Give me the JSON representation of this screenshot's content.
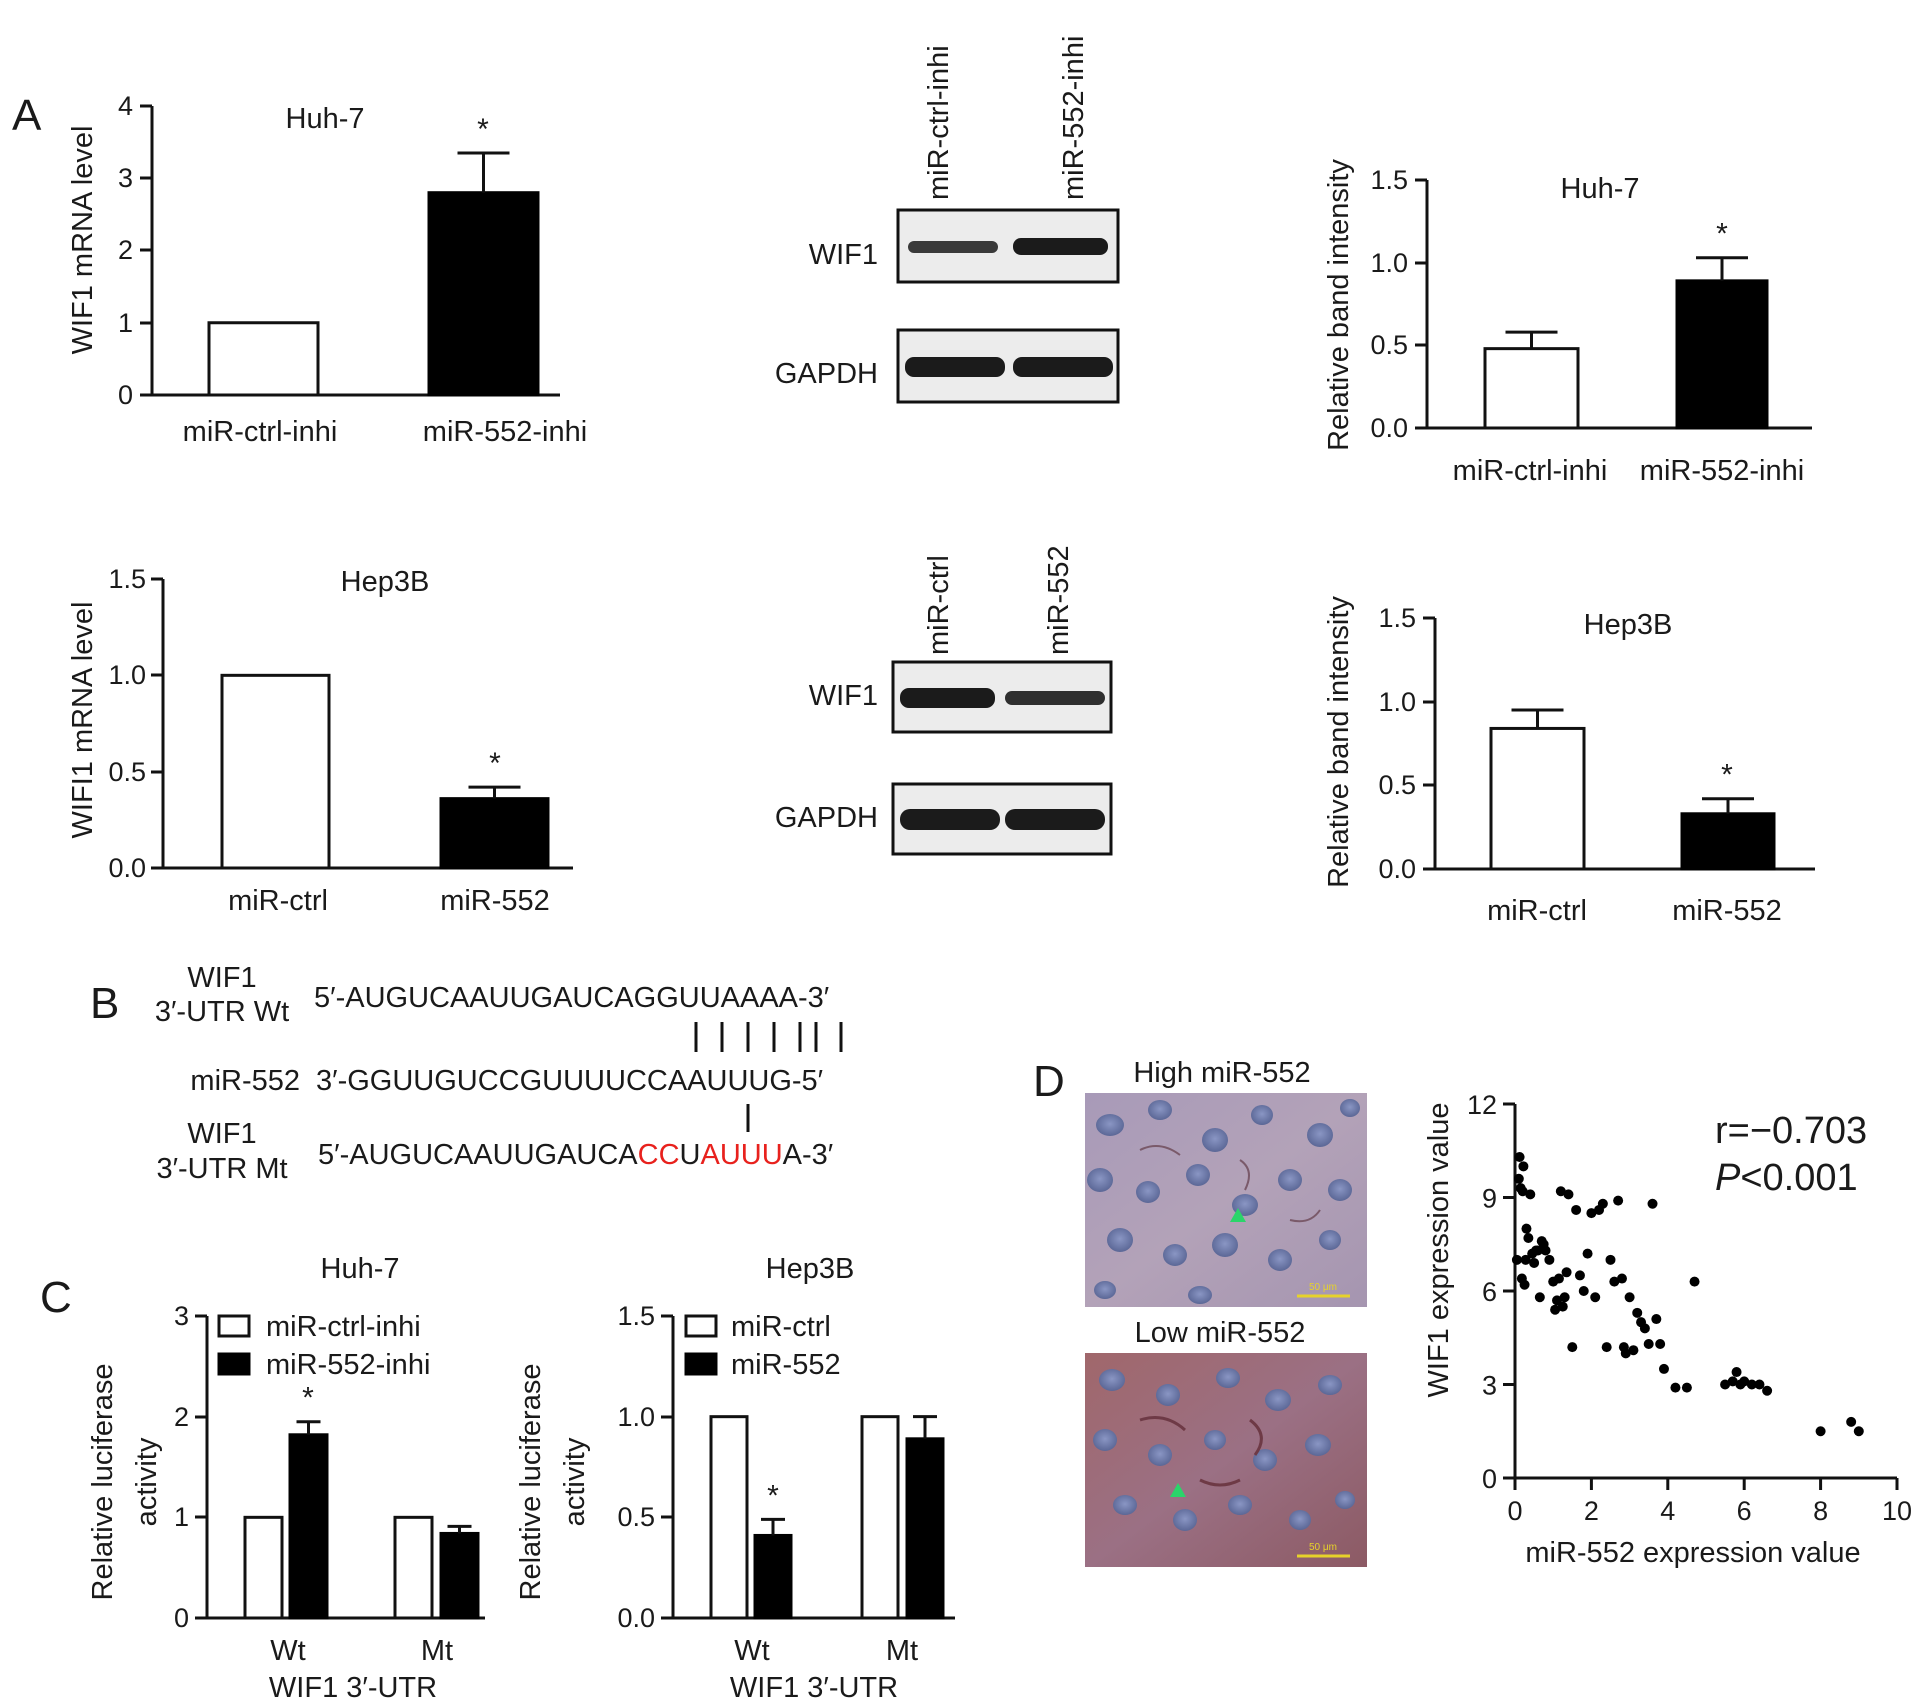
{
  "panel_letters": [
    "A",
    "B",
    "C",
    "D"
  ],
  "panelA": {
    "huh7_mrna": {
      "title": "Huh-7",
      "ylabel": "WIF1 mRNA level",
      "ticks": [
        "0",
        "1",
        "2",
        "3",
        "4"
      ],
      "categories": [
        "miR-ctrl-inhi",
        "miR-552-inhi"
      ],
      "star": "*"
    },
    "hep3b_mrna": {
      "title": "Hep3B",
      "ylabel": "WIFI1 mRNA level",
      "ticks": [
        "0.0",
        "0.5",
        "1.0",
        "1.5"
      ],
      "categories": [
        "miR-ctrl",
        "miR-552"
      ],
      "star": "*"
    },
    "blot_huh7": {
      "lanes": [
        "miR-ctrl-inhi",
        "miR-552-inhi"
      ],
      "rows": [
        "WIF1",
        "GAPDH"
      ]
    },
    "blot_hep3b": {
      "lanes": [
        "miR-ctrl",
        "miR-552"
      ],
      "rows": [
        "WIF1",
        "GAPDH"
      ]
    },
    "huh7_band": {
      "title": "Huh-7",
      "ylabel": "Relative band intensity",
      "ticks": [
        "0.0",
        "0.5",
        "1.0",
        "1.5"
      ],
      "categories": [
        "miR-ctrl-inhi",
        "miR-552-inhi"
      ],
      "star": "*"
    },
    "hep3b_band": {
      "title": "Hep3B",
      "ylabel": "Relative band intensity",
      "ticks": [
        "0.0",
        "0.5",
        "1.0",
        "1.5"
      ],
      "categories": [
        "miR-ctrl",
        "miR-552"
      ],
      "star": "*"
    }
  },
  "panelB": {
    "wt_label_1": "WIF1",
    "wt_label_2": "3′-UTR Wt",
    "wt_seq": "5′-AUGUCAAUUGAUCAGGUUAAAA-3′",
    "mir_label": "miR-552",
    "mir_seq": "3′-GGUUGUCCGUUUUCCAAUUUG-5′",
    "mt_label_1": "WIF1",
    "mt_label_2": "3′-UTR Mt",
    "mt_seq_a": "5′-AUGUCAAUUGAUCA",
    "mt_seq_b": "CC",
    "mt_seq_c": "U",
    "mt_seq_d": "AUUU",
    "mt_seq_e": "A-3′",
    "mutation_color": "#e8211d"
  },
  "panelC": {
    "ylabel_1": "Relative luciferase",
    "ylabel_2": "activity",
    "huh7": {
      "title": "Huh-7",
      "ticks": [
        "0",
        "1",
        "2",
        "3"
      ],
      "legend": [
        "miR-ctrl-inhi",
        "miR-552-inhi"
      ],
      "groups": [
        "Wt",
        "Mt"
      ],
      "xlabel": "WIF1 3′-UTR",
      "star": "*"
    },
    "hep3b": {
      "title": "Hep3B",
      "ticks": [
        "0.0",
        "0.5",
        "1.0",
        "1.5"
      ],
      "legend": [
        "miR-ctrl",
        "miR-552"
      ],
      "groups": [
        "Wt",
        "Mt"
      ],
      "xlabel": "WIF1 3′-UTR",
      "star": "*"
    }
  },
  "panelD": {
    "img_high_label": "High miR-552",
    "img_low_label": "Low miR-552",
    "scale_label": "50 μm",
    "xlabel": "miR-552 expression value",
    "ylabel": "WIF1 expression value",
    "xticks": [
      "0",
      "2",
      "4",
      "6",
      "8",
      "10"
    ],
    "yticks": [
      "0",
      "3",
      "6",
      "9",
      "12"
    ],
    "r_text": "r=−0.703",
    "p_italic": "P",
    "p_rest": "<0.001"
  },
  "chart_data": [
    {
      "type": "bar",
      "title": "Huh-7",
      "ylabel": "WIF1 mRNA level",
      "ylim": [
        0,
        4
      ],
      "categories": [
        "miR-ctrl-inhi",
        "miR-552-inhi"
      ],
      "values": [
        1.0,
        2.8
      ],
      "errors": [
        0,
        0.55
      ]
    },
    {
      "type": "bar",
      "title": "Hep3B",
      "ylabel": "WIFI1 mRNA level",
      "ylim": [
        0,
        1.5
      ],
      "categories": [
        "miR-ctrl",
        "miR-552"
      ],
      "values": [
        1.0,
        0.36
      ],
      "errors": [
        0,
        0.06
      ]
    },
    {
      "type": "bar",
      "title": "Huh-7",
      "ylabel": "Relative band intensity",
      "ylim": [
        0,
        1.5
      ],
      "categories": [
        "miR-ctrl-inhi",
        "miR-552-inhi"
      ],
      "values": [
        0.48,
        0.89
      ],
      "errors": [
        0.1,
        0.14
      ]
    },
    {
      "type": "bar",
      "title": "Hep3B",
      "ylabel": "Relative band intensity",
      "ylim": [
        0,
        1.5
      ],
      "categories": [
        "miR-ctrl",
        "miR-552"
      ],
      "values": [
        0.84,
        0.33
      ],
      "errors": [
        0.11,
        0.09
      ]
    },
    {
      "type": "bar",
      "title": "Huh-7",
      "ylabel": "Relative luciferase activity",
      "xlabel": "WIF1 3′-UTR",
      "ylim": [
        0,
        3
      ],
      "categories": [
        "Wt",
        "Mt"
      ],
      "series": [
        {
          "name": "miR-ctrl-inhi",
          "values": [
            1.0,
            1.0
          ],
          "errors": [
            0,
            0
          ]
        },
        {
          "name": "miR-552-inhi",
          "values": [
            1.82,
            0.84
          ],
          "errors": [
            0.13,
            0.07
          ]
        }
      ]
    },
    {
      "type": "bar",
      "title": "Hep3B",
      "ylabel": "Relative luciferase activity",
      "xlabel": "WIF1 3′-UTR",
      "ylim": [
        0,
        1.5
      ],
      "categories": [
        "Wt",
        "Mt"
      ],
      "series": [
        {
          "name": "miR-ctrl",
          "values": [
            1.0,
            1.0
          ],
          "errors": [
            0,
            0
          ]
        },
        {
          "name": "miR-552",
          "values": [
            0.41,
            0.89
          ],
          "errors": [
            0.08,
            0.11
          ]
        }
      ]
    },
    {
      "type": "scatter",
      "xlabel": "miR-552 expression value",
      "ylabel": "WIF1 expression value",
      "xlim": [
        0,
        10
      ],
      "ylim": [
        0,
        12
      ],
      "x": [
        0.05,
        0.1,
        0.12,
        0.15,
        0.18,
        0.2,
        0.22,
        0.25,
        0.28,
        0.3,
        0.35,
        0.4,
        0.45,
        0.5,
        0.55,
        0.6,
        0.65,
        0.7,
        0.75,
        0.8,
        0.9,
        1.0,
        1.05,
        1.1,
        1.15,
        1.2,
        1.25,
        1.3,
        1.35,
        1.4,
        1.5,
        1.6,
        1.7,
        1.8,
        1.9,
        2.0,
        2.1,
        2.2,
        2.3,
        2.4,
        2.5,
        2.6,
        2.7,
        2.8,
        2.85,
        2.9,
        3.0,
        3.1,
        3.2,
        3.3,
        3.4,
        3.5,
        3.6,
        3.7,
        3.8,
        3.9,
        4.2,
        4.5,
        4.7,
        5.5,
        5.7,
        5.8,
        5.9,
        6.0,
        6.2,
        6.4,
        6.6,
        8.0,
        8.8,
        9.0
      ],
      "y": [
        7.0,
        9.6,
        10.3,
        9.3,
        6.4,
        9.2,
        10.0,
        6.2,
        7.0,
        8.0,
        7.7,
        9.1,
        7.2,
        6.9,
        7.3,
        7.3,
        5.8,
        7.6,
        7.5,
        7.3,
        7.0,
        6.3,
        5.4,
        5.7,
        6.4,
        9.2,
        5.5,
        5.8,
        6.6,
        9.1,
        4.2,
        8.6,
        6.5,
        6.0,
        7.2,
        8.5,
        5.8,
        8.6,
        8.8,
        4.2,
        7.0,
        6.3,
        8.9,
        6.4,
        4.2,
        4.0,
        5.8,
        4.1,
        5.3,
        5.0,
        4.8,
        4.3,
        8.8,
        5.1,
        4.3,
        3.5,
        2.9,
        2.9,
        6.3,
        3.0,
        3.1,
        3.4,
        3.0,
        3.1,
        3.0,
        3.0,
        2.8,
        1.5,
        1.8,
        1.5
      ]
    }
  ]
}
